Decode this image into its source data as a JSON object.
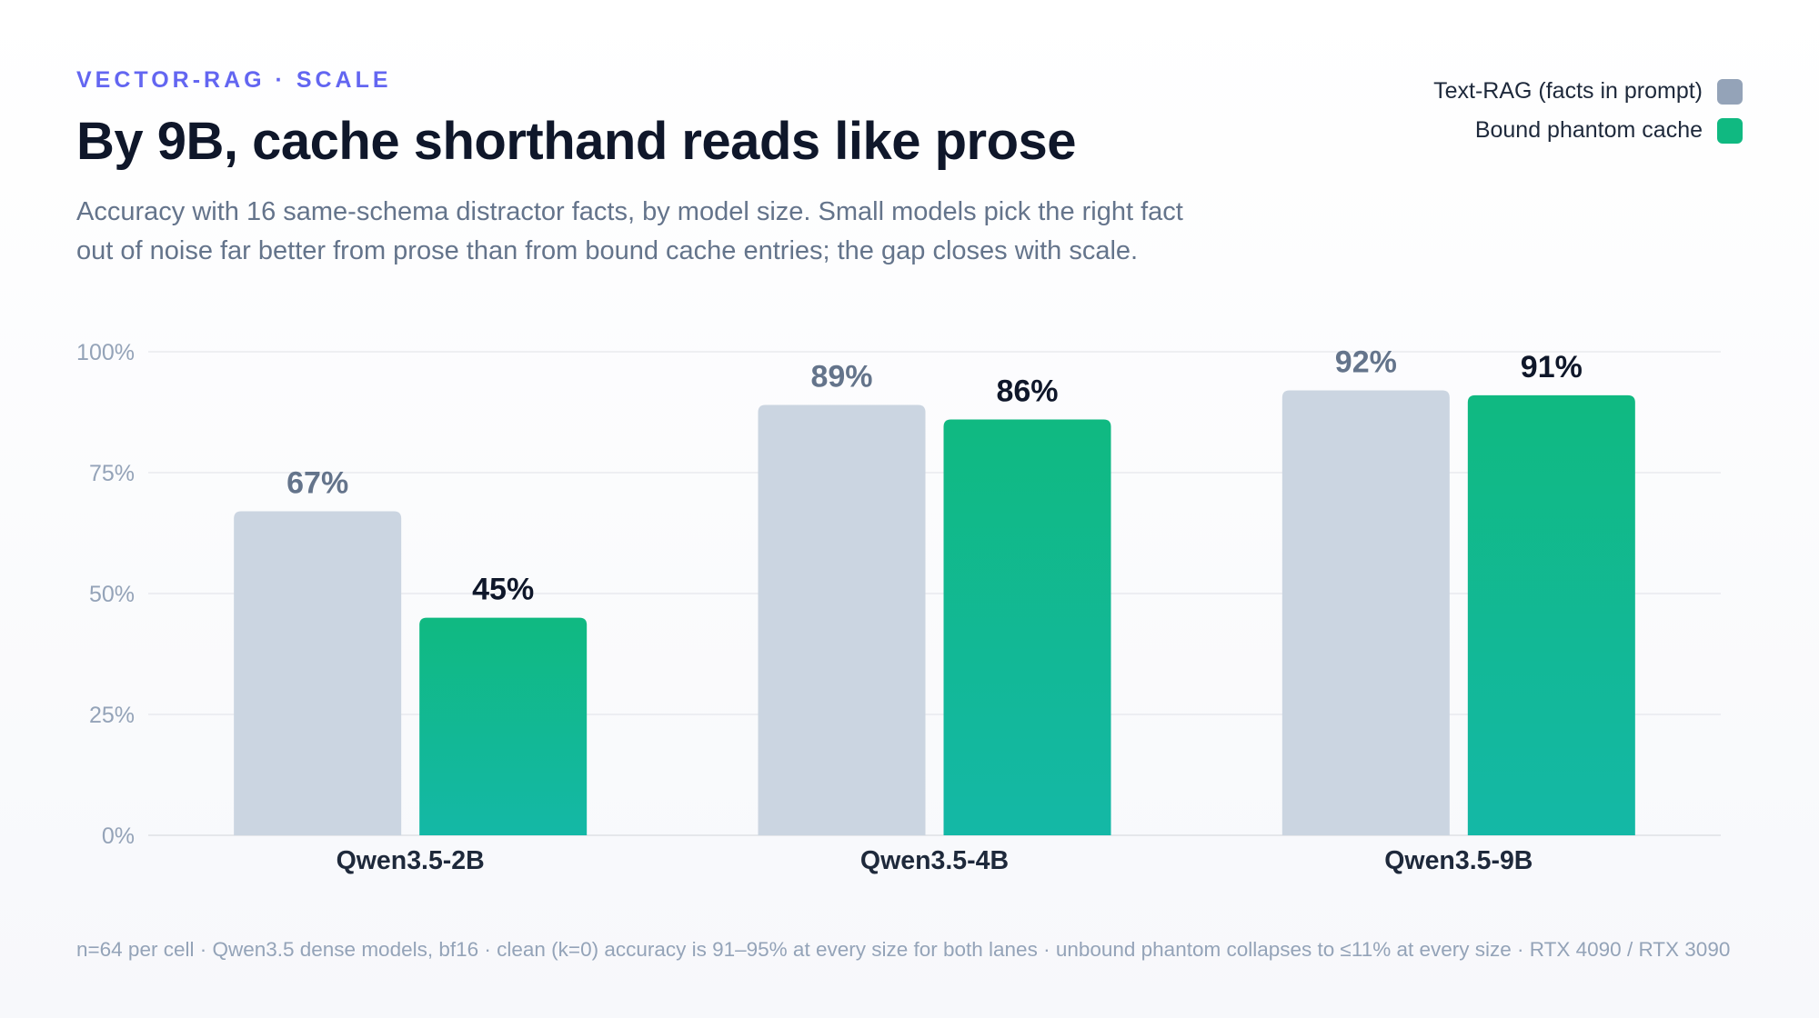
{
  "header": {
    "eyebrow": "VECTOR-RAG · SCALE",
    "title": "By 9B, cache shorthand reads like prose",
    "subtitle": "Accuracy with 16 same-schema distractor facts, by model size. Small models pick the right fact out of noise far better from prose than from bound cache entries; the gap closes with scale."
  },
  "legend": {
    "placement": "top-right",
    "items": [
      {
        "label": "Text-RAG (facts in prompt)",
        "color": "#94a3b8"
      },
      {
        "label": "Bound phantom cache",
        "color": "#10b981"
      }
    ]
  },
  "colors": {
    "text_rag_bar": "#cbd5e1",
    "phantom_top": "#10b981",
    "phantom_bottom": "#14b8a6",
    "gridline": "#e5e7eb",
    "text_rag_label": "#64748b",
    "phantom_label": "#0f172a",
    "tick_label": "#94a3b8",
    "category_label": "#1e293b"
  },
  "chart_data": {
    "type": "bar",
    "categories": [
      "Qwen3.5-2B",
      "Qwen3.5-4B",
      "Qwen3.5-9B"
    ],
    "series": [
      {
        "name": "Text-RAG (facts in prompt)",
        "values": [
          67,
          89,
          92
        ]
      },
      {
        "name": "Bound phantom cache",
        "values": [
          45,
          86,
          91
        ]
      }
    ],
    "value_suffix": "%",
    "ylim": [
      0,
      100
    ],
    "yticks": [
      0,
      25,
      50,
      75,
      100
    ],
    "ytick_labels": [
      "0%",
      "25%",
      "50%",
      "75%",
      "100%"
    ],
    "grid": true
  },
  "footer": {
    "note": "n=64 per cell · Qwen3.5 dense models, bf16 · clean (k=0) accuracy is 91–95% at every size for both lanes · unbound phantom collapses to ≤11% at every size · RTX 4090 / RTX 3090"
  }
}
